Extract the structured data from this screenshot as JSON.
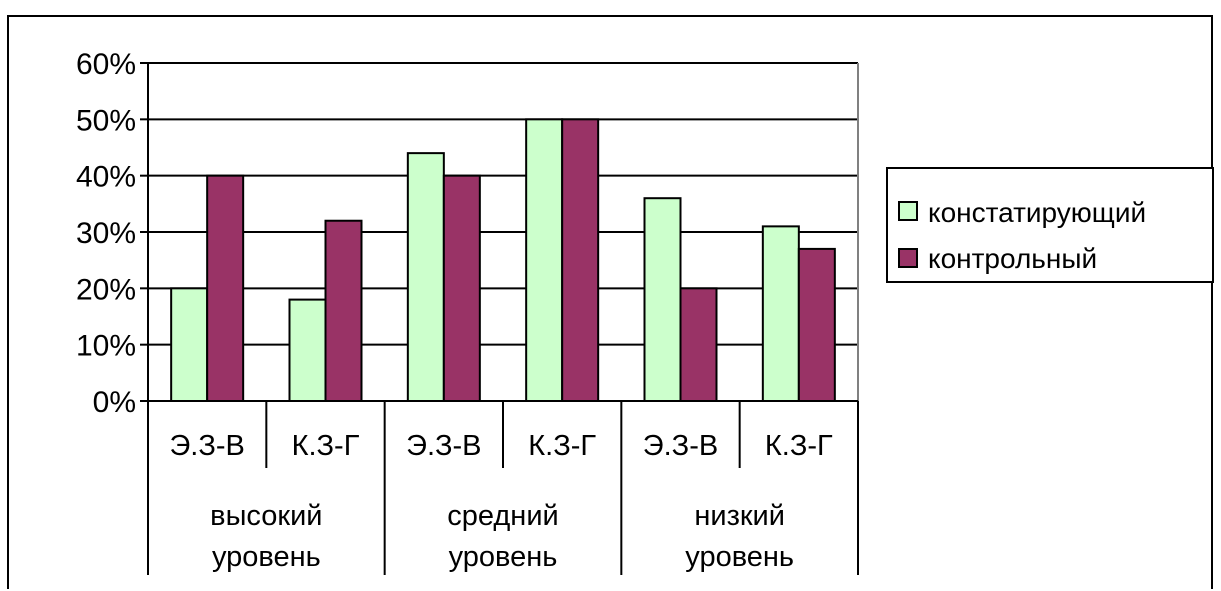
{
  "chart_data": {
    "type": "bar",
    "y_ticks": [
      "0%",
      "10%",
      "20%",
      "30%",
      "40%",
      "50%",
      "60%"
    ],
    "ylim": [
      0,
      60
    ],
    "grid": true,
    "legend_position": "right",
    "groups": [
      {
        "label_line1": "высокий",
        "label_line2": "уровень",
        "categories": [
          "Э.З-В",
          "К.З-Г"
        ]
      },
      {
        "label_line1": "средний",
        "label_line2": "уровень",
        "categories": [
          "Э.З-В",
          "К.З-Г"
        ]
      },
      {
        "label_line1": "низкий",
        "label_line2": "уровень",
        "categories": [
          "Э.З-В",
          "К.З-Г"
        ]
      }
    ],
    "categories": [
      "Э.З-В",
      "К.З-Г",
      "Э.З-В",
      "К.З-Г",
      "Э.З-В",
      "К.З-Г"
    ],
    "series": [
      {
        "name": "констатирующий",
        "color": "#ccffcc",
        "values": [
          20,
          18,
          44,
          50,
          36,
          31
        ]
      },
      {
        "name": "контрольный",
        "color": "#993366",
        "values": [
          40,
          32,
          40,
          50,
          20,
          27
        ]
      }
    ]
  }
}
